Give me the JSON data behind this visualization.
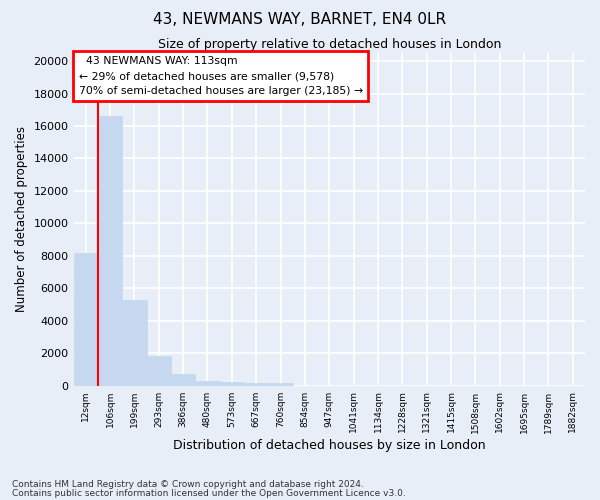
{
  "title_line1": "43, NEWMANS WAY, BARNET, EN4 0LR",
  "title_line2": "Size of property relative to detached houses in London",
  "xlabel": "Distribution of detached houses by size in London",
  "ylabel": "Number of detached properties",
  "bar_labels": [
    "12sqm",
    "106sqm",
    "199sqm",
    "293sqm",
    "386sqm",
    "480sqm",
    "573sqm",
    "667sqm",
    "760sqm",
    "854sqm",
    "947sqm",
    "1041sqm",
    "1134sqm",
    "1228sqm",
    "1321sqm",
    "1415sqm",
    "1508sqm",
    "1602sqm",
    "1695sqm",
    "1789sqm",
    "1882sqm"
  ],
  "bar_values": [
    8200,
    16600,
    5300,
    1850,
    700,
    310,
    210,
    175,
    150,
    0,
    0,
    0,
    0,
    0,
    0,
    0,
    0,
    0,
    0,
    0,
    0
  ],
  "bar_color": "#c5d8f0",
  "bar_edge_color": "#c5d8f0",
  "vline_color": "red",
  "annotation_title": "43 NEWMANS WAY: 113sqm",
  "annotation_line1": "← 29% of detached houses are smaller (9,578)",
  "annotation_line2": "70% of semi-detached houses are larger (23,185) →",
  "annotation_box_color": "red",
  "ylim": [
    0,
    20500
  ],
  "yticks": [
    0,
    2000,
    4000,
    6000,
    8000,
    10000,
    12000,
    14000,
    16000,
    18000,
    20000
  ],
  "footer_line1": "Contains HM Land Registry data © Crown copyright and database right 2024.",
  "footer_line2": "Contains public sector information licensed under the Open Government Licence v3.0.",
  "bg_color": "#e8eef8",
  "grid_color": "white"
}
